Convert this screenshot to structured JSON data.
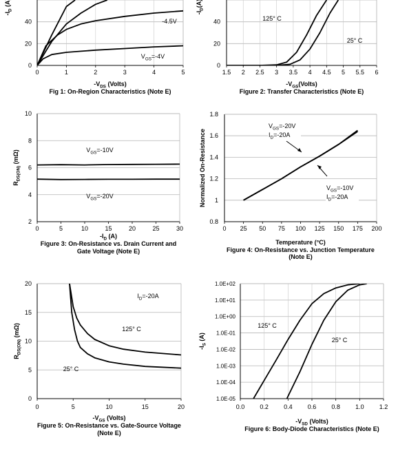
{
  "chart_data": [
    {
      "id": "fig1",
      "type": "line",
      "caption": "Fig 1: On-Region Characteristics (Note E)",
      "xlabel": {
        "main": "-V",
        "sub": "DS",
        "rest": " (Volts)"
      },
      "ylabel": {
        "main": "-I",
        "sub": "D",
        "rest": " (A)"
      },
      "xlim": [
        0,
        5
      ],
      "ylim": [
        0,
        60
      ],
      "xticks": [
        "0",
        "1",
        "2",
        "3",
        "4",
        "5"
      ],
      "yticks": [
        "0",
        "20",
        "40"
      ],
      "series": [
        {
          "x": [
            0,
            0.5,
            1.0,
            1.3
          ],
          "y": [
            0,
            28,
            54,
            60
          ]
        },
        {
          "x": [
            0,
            0.5,
            1.0,
            1.5,
            2.0,
            2.4
          ],
          "y": [
            0,
            22,
            38,
            48,
            56,
            60
          ]
        },
        {
          "x": [
            0,
            0.3,
            0.7,
            1.0,
            1.5,
            2.0,
            3.0,
            4.0,
            5.0
          ],
          "y": [
            0,
            18,
            28,
            33,
            38,
            41,
            45,
            48,
            50
          ]
        },
        {
          "x": [
            0,
            0.2,
            0.5,
            1.0,
            2.0,
            3.0,
            4.0,
            5.0
          ],
          "y": [
            0,
            6,
            10,
            12,
            14,
            15.5,
            17,
            18
          ]
        }
      ],
      "annotations": [
        {
          "text": "-4.5V"
        },
        {
          "main": "V",
          "sub": "GS",
          "rest": "=-4V"
        }
      ]
    },
    {
      "id": "fig2",
      "type": "line",
      "caption": "Figure 2: Transfer Characteristics (Note E)",
      "xlabel": {
        "main": "-V",
        "sub": "GS",
        "rest": "(Volts)"
      },
      "ylabel": {
        "main": "-I",
        "sub": "D",
        "rest": "(A)"
      },
      "xlim": [
        1.5,
        6
      ],
      "ylim": [
        0,
        60
      ],
      "xticks": [
        "1.5",
        "2",
        "2.5",
        "3",
        "3.5",
        "4",
        "4.5",
        "5",
        "5.5",
        "6"
      ],
      "yticks": [
        "0",
        "20",
        "40"
      ],
      "series": [
        {
          "name": "125° C",
          "x": [
            1.5,
            2.5,
            3.0,
            3.3,
            3.6,
            3.9,
            4.2,
            4.5
          ],
          "y": [
            0,
            0,
            0.5,
            3,
            12,
            28,
            46,
            60
          ]
        },
        {
          "name": "25° C",
          "x": [
            1.5,
            3.0,
            3.4,
            3.7,
            4.0,
            4.3,
            4.6,
            4.85
          ],
          "y": [
            0,
            0,
            1,
            5,
            15,
            30,
            48,
            60
          ]
        }
      ],
      "annotations": [
        {
          "text": "125° C"
        },
        {
          "text": "25° C"
        }
      ]
    },
    {
      "id": "fig3",
      "type": "line",
      "caption": [
        "Figure 3: On-Resistance vs. Drain Current and",
        "Gate Voltage (Note E)"
      ],
      "xlabel": {
        "main": "-I",
        "sub": "D",
        "rest": " (A)"
      },
      "ylabel": {
        "main": "R",
        "sub": "DS(ON)",
        "rest": " (mΩ)"
      },
      "xlim": [
        0,
        30
      ],
      "ylim": [
        2,
        10
      ],
      "xticks": [
        "0",
        "5",
        "10",
        "15",
        "20",
        "25",
        "30"
      ],
      "yticks": [
        "2",
        "4",
        "6",
        "8",
        "10"
      ],
      "series": [
        {
          "name": "VGS=-10V",
          "x": [
            0,
            5,
            10,
            15,
            20,
            25,
            30
          ],
          "y": [
            6.2,
            6.22,
            6.2,
            6.23,
            6.24,
            6.25,
            6.26
          ]
        },
        {
          "name": "VGS=-20V",
          "x": [
            0,
            5,
            10,
            15,
            20,
            25,
            30
          ],
          "y": [
            5.15,
            5.12,
            5.13,
            5.14,
            5.14,
            5.15,
            5.15
          ]
        }
      ],
      "annotations": [
        {
          "main": "V",
          "sub": "GS",
          "rest": "=-10V"
        },
        {
          "main": "V",
          "sub": "GS",
          "rest": "=-20V"
        }
      ]
    },
    {
      "id": "fig4",
      "type": "line",
      "caption": [
        "Figure 4: On-Resistance vs. Junction Temperature",
        "(Note E)"
      ],
      "xlabel": {
        "main": "Temperature (°C)",
        "sub": "",
        "rest": ""
      },
      "ylabel": {
        "main": "Normalized On-Resistance",
        "sub": "",
        "rest": ""
      },
      "xlim": [
        0,
        200
      ],
      "ylim": [
        0.8,
        1.8
      ],
      "xticks": [
        "0",
        "25",
        "50",
        "75",
        "100",
        "125",
        "150",
        "175",
        "200"
      ],
      "yticks": [
        "0.8",
        "1",
        "1.2",
        "1.4",
        "1.6",
        "1.8"
      ],
      "series": [
        {
          "x": [
            25,
            50,
            75,
            100,
            125,
            150,
            175
          ],
          "y": [
            1.0,
            1.1,
            1.2,
            1.31,
            1.41,
            1.52,
            1.64
          ]
        },
        {
          "x": [
            25,
            50,
            75,
            100,
            125,
            150,
            175
          ],
          "y": [
            1.0,
            1.1,
            1.2,
            1.31,
            1.41,
            1.52,
            1.65
          ]
        }
      ],
      "annotations": [
        [
          {
            "main": "V",
            "sub": "GS",
            "rest": "=-20V"
          },
          {
            "main": "I",
            "sub": "D",
            "rest": "=-20A"
          }
        ],
        [
          {
            "main": "V",
            "sub": "GS",
            "rest": "=-10V"
          },
          {
            "main": "I",
            "sub": "D",
            "rest": "=-20A"
          }
        ]
      ]
    },
    {
      "id": "fig5",
      "type": "line",
      "caption": [
        "Figure 5: On-Resistance vs. Gate-Source Voltage",
        "(Note E)"
      ],
      "xlabel": {
        "main": "-V",
        "sub": "GS",
        "rest": " (Volts)"
      },
      "ylabel": {
        "main": "R",
        "sub": "DS(ON)",
        "rest": " (mΩ)"
      },
      "xlim": [
        0,
        20
      ],
      "ylim": [
        0,
        20
      ],
      "xticks": [
        "0",
        "5",
        "10",
        "15",
        "20"
      ],
      "yticks": [
        "0",
        "5",
        "10",
        "15",
        "20"
      ],
      "series": [
        {
          "name": "125° C",
          "x": [
            4.5,
            5.0,
            5.5,
            6,
            7,
            8,
            10,
            12,
            15,
            20
          ],
          "y": [
            20,
            16,
            14,
            12.8,
            11.3,
            10.3,
            9.2,
            8.6,
            8.1,
            7.6
          ]
        },
        {
          "name": "25° C",
          "x": [
            4.5,
            4.8,
            5.2,
            5.6,
            6,
            7,
            8,
            10,
            12,
            15,
            20
          ],
          "y": [
            20,
            15,
            12,
            10,
            8.9,
            7.8,
            7.1,
            6.4,
            6.0,
            5.6,
            5.3
          ]
        }
      ],
      "annotations": [
        {
          "main": "I",
          "sub": "D",
          "rest": "=-20A"
        },
        {
          "text": "125° C"
        },
        {
          "text": "25° C"
        }
      ]
    },
    {
      "id": "fig6",
      "type": "line",
      "log_y": true,
      "caption": "Figure 6: Body-Diode Characteristics (Note E)",
      "xlabel": {
        "main": "-V",
        "sub": "SD",
        "rest": " (Volts)"
      },
      "ylabel": {
        "main": "-I",
        "sub": "S",
        "rest": " (A)"
      },
      "xlim": [
        0,
        1.2
      ],
      "ylim": [
        1e-05,
        100
      ],
      "xticks": [
        "0.0",
        "0.2",
        "0.4",
        "0.6",
        "0.8",
        "1.0",
        "1.2"
      ],
      "yticks": [
        "1.0E-05",
        "1.0E-04",
        "1.0E-03",
        "1.0E-02",
        "1.0E-01",
        "1.0E+00",
        "1.0E+01",
        "1.0E+02"
      ],
      "series": [
        {
          "name": "125° C",
          "x": [
            0.11,
            0.2,
            0.3,
            0.4,
            0.5,
            0.6,
            0.7,
            0.8,
            0.9,
            1.0
          ],
          "y": [
            1e-05,
            0.00013,
            0.0022,
            0.04,
            0.6,
            6,
            25,
            55,
            85,
            100
          ]
        },
        {
          "name": "25° C",
          "x": [
            0.39,
            0.5,
            0.6,
            0.7,
            0.8,
            0.9,
            1.0,
            1.06
          ],
          "y": [
            1e-05,
            0.00045,
            0.02,
            0.6,
            8,
            40,
            85,
            100
          ]
        }
      ],
      "annotations": [
        {
          "text": "125° C"
        },
        {
          "text": "25° C"
        }
      ]
    }
  ]
}
